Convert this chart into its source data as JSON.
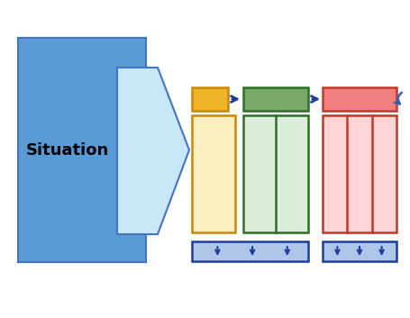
{
  "bg_color": "#ffffff",
  "arrow_big_fill": "#c8e8f8",
  "arrow_big_border": "#4472c4",
  "arrow_big_outer_fill": "#5b9bd5",
  "situation_text": "Situation",
  "situation_fontsize": 13,
  "small_arrow_color": "#1f3d9c",
  "blue_box_fill": "#aec6e8",
  "blue_box_border": "#1f3d9c",
  "yellow_small_fill": "#f0b429",
  "yellow_small_border": "#c8880a",
  "yellow_large_fill": "#fdf0c0",
  "yellow_large_border": "#c8880a",
  "green_small_fill": "#7aaa6a",
  "green_small_border": "#2e6e28",
  "green_large_fill": "#daeeda",
  "green_large_border": "#2e6e28",
  "red_small_fill": "#f08080",
  "red_small_border": "#c0392b",
  "red_large_fill": "#ffd5d5",
  "red_large_border": "#c0392b",
  "curl_color": "#3060b0",
  "figw": 4.56,
  "figh": 3.53,
  "dpi": 100
}
